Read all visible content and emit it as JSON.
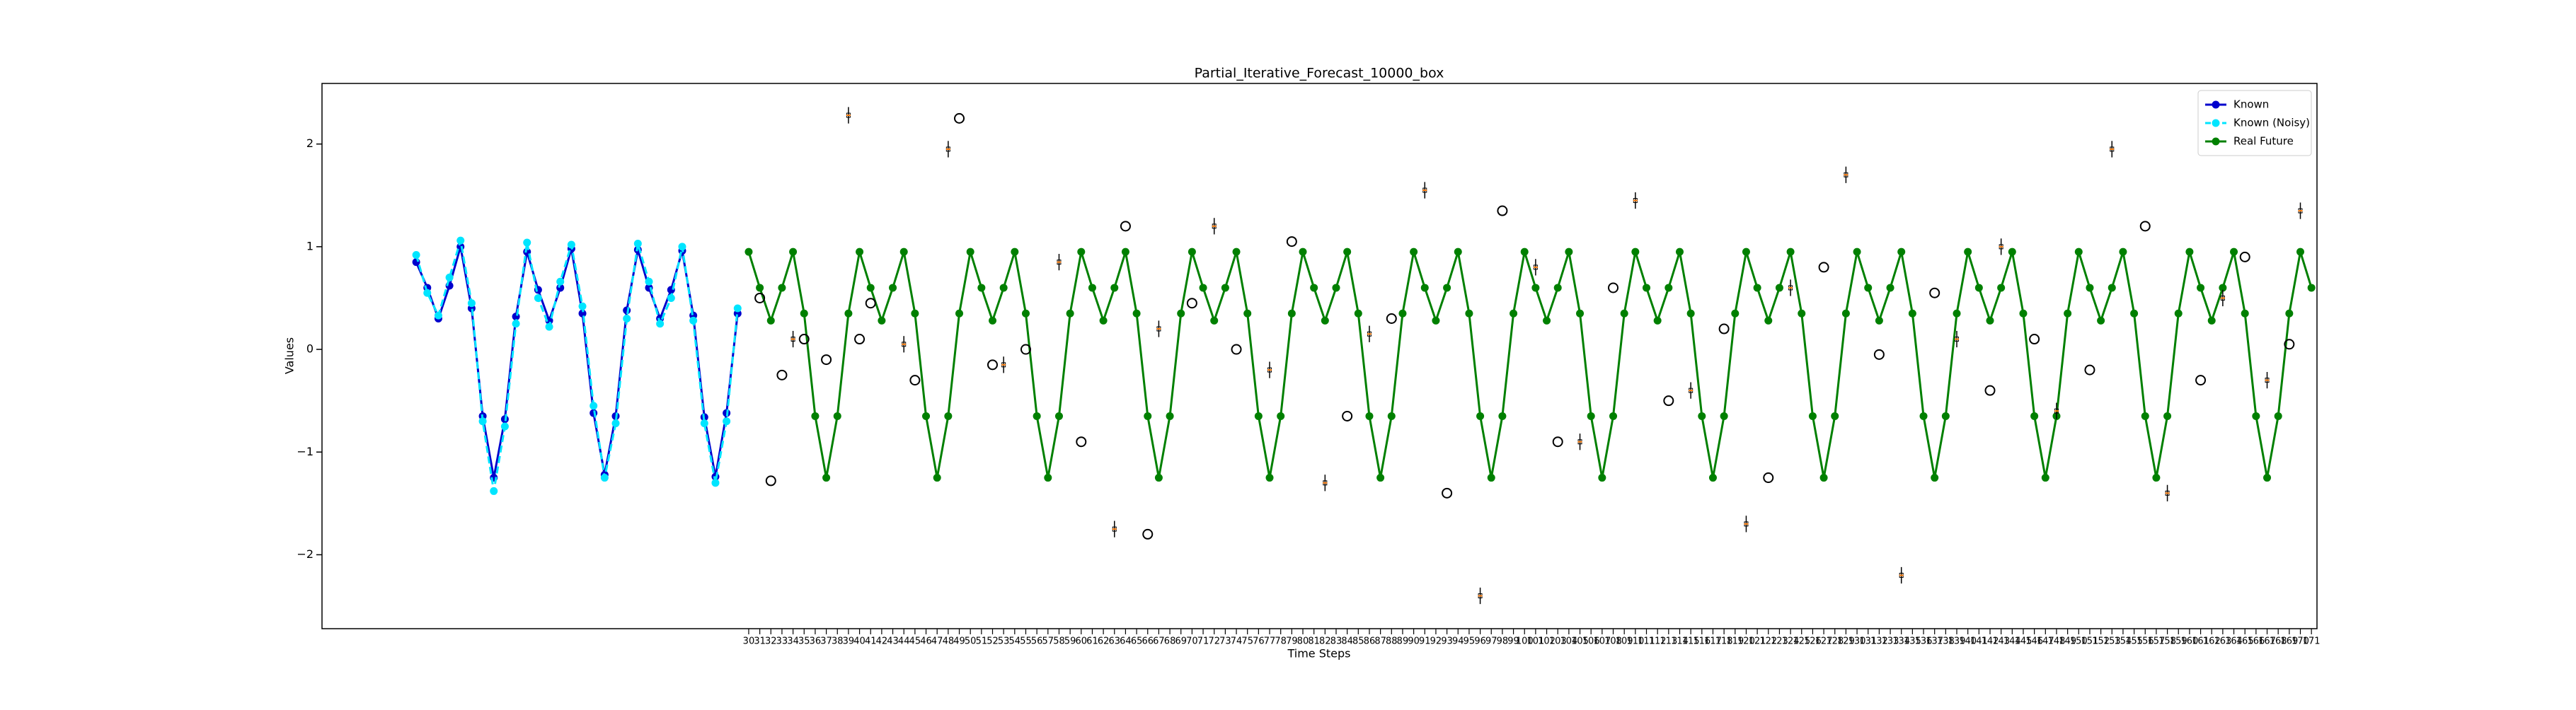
{
  "chart_data": {
    "type": "line",
    "title": "Partial_Iterative_Forecast_10000_box",
    "x_label": "Time Steps",
    "y_label": "Values",
    "xlim": [
      -8.5,
      171.5
    ],
    "ylim": [
      -2.72,
      2.59
    ],
    "yticks": [
      {
        "value": -2,
        "label": "−2"
      },
      {
        "value": -1,
        "label": "−1"
      },
      0,
      1,
      2
    ],
    "xticks": [
      30,
      31,
      32,
      33,
      34,
      35,
      36,
      37,
      38,
      39,
      40,
      41,
      42,
      43,
      44,
      45,
      46,
      47,
      48,
      49,
      50,
      51,
      52,
      53,
      54,
      55,
      56,
      57,
      58,
      59,
      60,
      61,
      62,
      63,
      64,
      65,
      66,
      67,
      68,
      69,
      70,
      71,
      72,
      73,
      74,
      75,
      76,
      77,
      78,
      79,
      80,
      81,
      82,
      83,
      84,
      85,
      86,
      87,
      88,
      89,
      90,
      91,
      92,
      93,
      94,
      95,
      96,
      97,
      98,
      99,
      100,
      101,
      102,
      103,
      104,
      105,
      106,
      107,
      108,
      109,
      110,
      111,
      112,
      113,
      114,
      115,
      116,
      117,
      118,
      119,
      120,
      121,
      122,
      123,
      124,
      125,
      126,
      127,
      128,
      129,
      130,
      131,
      132,
      133,
      134,
      135,
      136,
      137,
      138,
      139,
      140,
      141,
      142,
      143,
      144,
      145,
      146,
      147,
      148,
      149,
      150,
      151,
      152,
      153,
      154,
      155,
      156,
      157,
      158,
      159,
      160,
      161,
      162,
      163,
      164,
      165,
      166,
      167,
      168,
      169,
      170,
      171
    ],
    "legend": "upper right",
    "series": [
      {
        "name": "Known",
        "color": "#0000cd",
        "dashed": false,
        "x": [
          0,
          1,
          2,
          3,
          4,
          5,
          6,
          7,
          8,
          9,
          10,
          11,
          12,
          13,
          14,
          15,
          16,
          17,
          18,
          19,
          20,
          21,
          22,
          23,
          24,
          25,
          26,
          27,
          28,
          29
        ],
        "values": [
          0.85,
          0.6,
          0.3,
          0.62,
          1.0,
          0.4,
          -0.65,
          -1.25,
          -0.68,
          0.32,
          0.95,
          0.58,
          0.28,
          0.6,
          0.98,
          0.35,
          -0.62,
          -1.22,
          -0.65,
          0.38,
          0.97,
          0.6,
          0.3,
          0.58,
          0.96,
          0.33,
          -0.66,
          -1.24,
          -0.62,
          0.35
        ]
      },
      {
        "name": "Known (Noisy)",
        "color": "#00e5ff",
        "dashed": true,
        "x": [
          0,
          1,
          2,
          3,
          4,
          5,
          6,
          7,
          8,
          9,
          10,
          11,
          12,
          13,
          14,
          15,
          16,
          17,
          18,
          19,
          20,
          21,
          22,
          23,
          24,
          25,
          26,
          27,
          28,
          29
        ],
        "values": [
          0.92,
          0.55,
          0.33,
          0.7,
          1.06,
          0.45,
          -0.7,
          -1.38,
          -0.75,
          0.25,
          1.04,
          0.5,
          0.22,
          0.66,
          1.02,
          0.42,
          -0.55,
          -1.25,
          -0.72,
          0.3,
          1.03,
          0.66,
          0.25,
          0.5,
          1.0,
          0.28,
          -0.72,
          -1.3,
          -0.7,
          0.4
        ]
      },
      {
        "name": "Real Future",
        "color": "#008000",
        "dashed": false,
        "x": [
          30,
          31,
          32,
          33,
          34,
          35,
          36,
          37,
          38,
          39,
          40,
          41,
          42,
          43,
          44,
          45,
          46,
          47,
          48,
          49,
          50,
          51,
          52,
          53,
          54,
          55,
          56,
          57,
          58,
          59,
          60,
          61,
          62,
          63,
          64,
          65,
          66,
          67,
          68,
          69,
          70,
          71,
          72,
          73,
          74,
          75,
          76,
          77,
          78,
          79,
          80,
          81,
          82,
          83,
          84,
          85,
          86,
          87,
          88,
          89,
          90,
          91,
          92,
          93,
          94,
          95,
          96,
          97,
          98,
          99,
          100,
          101,
          102,
          103,
          104,
          105,
          106,
          107,
          108,
          109,
          110,
          111,
          112,
          113,
          114,
          115,
          116,
          117,
          118,
          119,
          120,
          121,
          122,
          123,
          124,
          125,
          126,
          127,
          128,
          129,
          130,
          131,
          132,
          133,
          134,
          135,
          136,
          137,
          138,
          139,
          140,
          141,
          142,
          143,
          144,
          145,
          146,
          147,
          148,
          149,
          150,
          151,
          152,
          153,
          154,
          155,
          156,
          157,
          158,
          159,
          160,
          161,
          162,
          163,
          164,
          165,
          166,
          167,
          168,
          169,
          170,
          171
        ],
        "values": [
          0.95,
          0.6,
          0.28,
          0.6,
          0.95,
          0.35,
          -0.65,
          -1.25,
          -0.65,
          0.35,
          0.95,
          0.6,
          0.28,
          0.6,
          0.95,
          0.35,
          -0.65,
          -1.25,
          -0.65,
          0.35,
          0.95,
          0.6,
          0.28,
          0.6,
          0.95,
          0.35,
          -0.65,
          -1.25,
          -0.65,
          0.35,
          0.95,
          0.6,
          0.28,
          0.6,
          0.95,
          0.35,
          -0.65,
          -1.25,
          -0.65,
          0.35,
          0.95,
          0.6,
          0.28,
          0.6,
          0.95,
          0.35,
          -0.65,
          -1.25,
          -0.65,
          0.35,
          0.95,
          0.6,
          0.28,
          0.6,
          0.95,
          0.35,
          -0.65,
          -1.25,
          -0.65,
          0.35,
          0.95,
          0.6,
          0.28,
          0.6,
          0.95,
          0.35,
          -0.65,
          -1.25,
          -0.65,
          0.35,
          0.95,
          0.6,
          0.28,
          0.6,
          0.95,
          0.35,
          -0.65,
          -1.25,
          -0.65,
          0.35,
          0.95,
          0.6,
          0.28,
          0.6,
          0.95,
          0.35,
          -0.65,
          -1.25,
          -0.65,
          0.35,
          0.95,
          0.6,
          0.28,
          0.6,
          0.95,
          0.35,
          -0.65,
          -1.25,
          -0.65,
          0.35,
          0.95,
          0.6,
          0.28,
          0.6,
          0.95,
          0.35,
          -0.65,
          -1.25,
          -0.65,
          0.35,
          0.95,
          0.6,
          0.28,
          0.6,
          0.95,
          0.35,
          -0.65,
          -1.25,
          -0.65,
          0.35,
          0.95,
          0.6,
          0.28,
          0.6,
          0.95,
          0.35,
          -0.65,
          -1.25,
          -0.65,
          0.35,
          0.95,
          0.6,
          0.28,
          0.6,
          0.95,
          0.35,
          -0.65,
          -1.25,
          -0.65,
          0.35,
          0.95,
          0.6
        ]
      }
    ],
    "boxes": {
      "color": "#000000",
      "median_color": "#ff7f0e",
      "x": [
        34,
        39,
        44,
        48,
        53,
        58,
        63,
        67,
        72,
        77,
        82,
        86,
        91,
        96,
        101,
        105,
        110,
        115,
        120,
        124,
        129,
        134,
        139,
        143,
        148,
        153,
        158,
        163,
        167,
        170
      ],
      "whislo": [
        0.02,
        2.2,
        -0.03,
        1.87,
        -0.23,
        0.77,
        -1.83,
        0.12,
        1.12,
        -0.28,
        -1.38,
        0.07,
        1.47,
        -2.48,
        0.72,
        -0.98,
        1.37,
        -0.48,
        -1.78,
        0.52,
        1.62,
        -2.28,
        0.02,
        0.92,
        -0.68,
        1.87,
        -1.48,
        0.42,
        -0.38,
        1.27
      ],
      "med": [
        0.1,
        2.28,
        0.05,
        1.95,
        -0.15,
        0.85,
        -1.75,
        0.2,
        1.2,
        -0.2,
        -1.3,
        0.15,
        1.55,
        -2.4,
        0.8,
        -0.9,
        1.45,
        -0.4,
        -1.7,
        0.6,
        1.7,
        -2.2,
        0.1,
        1.0,
        -0.6,
        1.95,
        -1.4,
        0.5,
        -0.3,
        1.35
      ],
      "whishi": [
        0.18,
        2.36,
        0.13,
        2.03,
        -0.07,
        0.93,
        -1.67,
        0.28,
        1.28,
        -0.12,
        -1.22,
        0.23,
        1.63,
        -2.32,
        0.88,
        -0.82,
        1.53,
        -0.32,
        -1.62,
        0.68,
        1.78,
        -2.12,
        0.18,
        1.08,
        -0.52,
        2.03,
        -1.32,
        0.58,
        -0.22,
        1.43
      ]
    },
    "outliers": {
      "x": [
        31,
        32,
        33,
        35,
        37,
        40,
        41,
        45,
        49,
        52,
        55,
        60,
        64,
        66,
        70,
        74,
        79,
        84,
        88,
        93,
        98,
        103,
        108,
        113,
        118,
        122,
        127,
        132,
        137,
        142,
        146,
        151,
        156,
        161,
        165,
        169
      ],
      "y": [
        0.5,
        -1.28,
        -0.25,
        0.1,
        -0.1,
        0.1,
        0.45,
        -0.3,
        2.25,
        -0.15,
        0.0,
        -0.9,
        1.2,
        -1.8,
        0.45,
        0.0,
        1.05,
        -0.65,
        0.3,
        -1.4,
        1.35,
        -0.9,
        0.6,
        -0.5,
        0.2,
        -1.25,
        0.8,
        -0.05,
        0.55,
        -0.4,
        0.1,
        -0.2,
        1.2,
        -0.3,
        0.9,
        0.05
      ]
    }
  }
}
